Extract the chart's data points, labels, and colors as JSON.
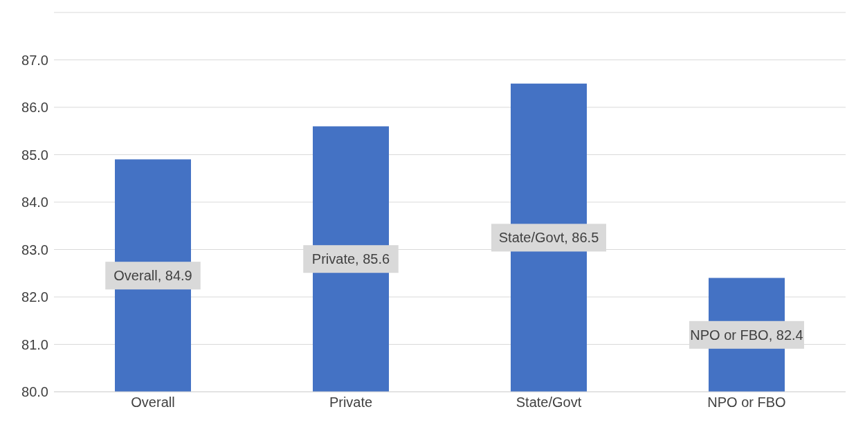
{
  "chart_data": {
    "type": "bar",
    "categories": [
      "Overall",
      "Private",
      "State/Govt",
      "NPO or FBO"
    ],
    "values": [
      84.9,
      85.6,
      86.5,
      82.4
    ],
    "color": "#4472c4",
    "value_labels": [
      "Overall, 84.9",
      "Private, 85.6",
      "State/Govt, 86.5",
      "NPO or FBO, 82.4"
    ],
    "ylim": [
      80,
      88
    ],
    "yticks": [
      {
        "value": 80,
        "label": "80.0"
      },
      {
        "value": 81,
        "label": "81.0"
      },
      {
        "value": 82,
        "label": "82.0"
      },
      {
        "value": 83,
        "label": "83.0"
      },
      {
        "value": 84,
        "label": "84.0"
      },
      {
        "value": 85,
        "label": "85.0"
      },
      {
        "value": 86,
        "label": "86.0"
      },
      {
        "value": 87,
        "label": "87.0"
      },
      {
        "value": 88,
        "label": null
      }
    ],
    "grid": "y"
  }
}
